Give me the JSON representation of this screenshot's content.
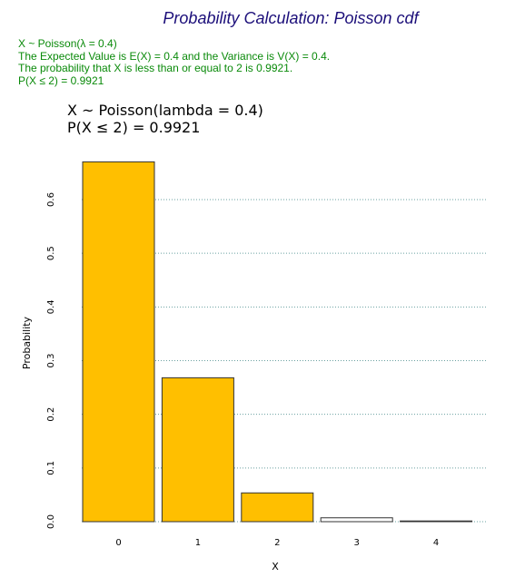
{
  "page": {
    "title": "Probability Calculation: Poisson cdf",
    "info_lines": [
      "X ~ Poisson(λ = 0.4)",
      "The Expected Value is E(X) = 0.4 and the Variance is V(X) = 0.4.",
      "The probability that X is less than or equal to 2 is 0.9921.",
      "P(X ≤ 2) = 0.9921"
    ],
    "colors": {
      "title": "#1c0f7a",
      "info": "#0a8a0a"
    }
  },
  "chart_data": {
    "type": "bar",
    "title_lines": [
      "X ~ Poisson(lambda = 0.4)",
      "P(X ≤ 2) = 0.9921"
    ],
    "xlabel": "X",
    "ylabel": "Probability",
    "categories": [
      "0",
      "1",
      "2",
      "3",
      "4"
    ],
    "values": [
      0.6703,
      0.2681,
      0.0536,
      0.0072,
      0.0007
    ],
    "highlighted": [
      true,
      true,
      true,
      false,
      false
    ],
    "ylim": [
      0,
      0.7
    ],
    "yticks": [
      0.0,
      0.1,
      0.2,
      0.3,
      0.4,
      0.5,
      0.6
    ],
    "ytick_labels": [
      "0.0",
      "0.1",
      "0.2",
      "0.3",
      "0.4",
      "0.5",
      "0.6"
    ],
    "grid": "horizontal dotted",
    "colors": {
      "highlight": "#ffbf00",
      "other": "#ffffff",
      "grid": "#6aa0a0"
    }
  }
}
